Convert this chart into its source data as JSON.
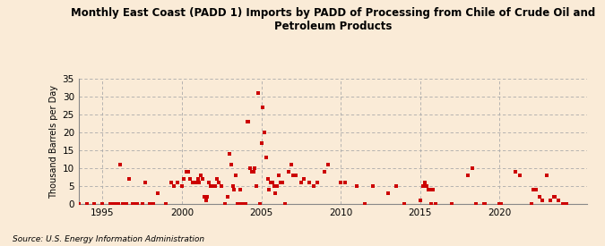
{
  "title": "Monthly East Coast (PADD 1) Imports by PADD of Processing from Chile of Crude Oil and\nPetroleum Products",
  "ylabel": "Thousand Barrels per Day",
  "source": "Source: U.S. Energy Information Administration",
  "background_color": "#faebd7",
  "marker_color": "#cc0000",
  "xlim": [
    1993.5,
    2025.5
  ],
  "ylim": [
    0,
    35
  ],
  "yticks": [
    0,
    5,
    10,
    15,
    20,
    25,
    30,
    35
  ],
  "xticks": [
    1995,
    2000,
    2005,
    2010,
    2015,
    2020
  ],
  "data_points": [
    [
      1993.5,
      0
    ],
    [
      1994.0,
      0
    ],
    [
      1994.5,
      0
    ],
    [
      1995.0,
      0
    ],
    [
      1995.5,
      0
    ],
    [
      1995.7,
      0
    ],
    [
      1995.9,
      0
    ],
    [
      1996.0,
      0
    ],
    [
      1996.1,
      11
    ],
    [
      1996.3,
      0
    ],
    [
      1996.5,
      0
    ],
    [
      1996.7,
      7
    ],
    [
      1996.9,
      0
    ],
    [
      1997.0,
      0
    ],
    [
      1997.2,
      0
    ],
    [
      1997.5,
      0
    ],
    [
      1997.7,
      6
    ],
    [
      1998.0,
      0
    ],
    [
      1998.2,
      0
    ],
    [
      1998.5,
      3
    ],
    [
      1999.0,
      0
    ],
    [
      1999.3,
      6
    ],
    [
      1999.5,
      5
    ],
    [
      1999.7,
      6
    ],
    [
      2000.0,
      5
    ],
    [
      2000.1,
      7
    ],
    [
      2000.3,
      9
    ],
    [
      2000.4,
      9
    ],
    [
      2000.5,
      7
    ],
    [
      2000.7,
      6
    ],
    [
      2000.9,
      6
    ],
    [
      2001.0,
      7
    ],
    [
      2001.1,
      6
    ],
    [
      2001.2,
      8
    ],
    [
      2001.3,
      7
    ],
    [
      2001.4,
      2
    ],
    [
      2001.5,
      1
    ],
    [
      2001.6,
      2
    ],
    [
      2001.7,
      6
    ],
    [
      2001.8,
      5
    ],
    [
      2002.0,
      5
    ],
    [
      2002.1,
      5
    ],
    [
      2002.2,
      7
    ],
    [
      2002.3,
      6
    ],
    [
      2002.5,
      5
    ],
    [
      2002.7,
      0
    ],
    [
      2002.9,
      2
    ],
    [
      2003.0,
      14
    ],
    [
      2003.1,
      11
    ],
    [
      2003.2,
      5
    ],
    [
      2003.3,
      4
    ],
    [
      2003.4,
      8
    ],
    [
      2003.5,
      0
    ],
    [
      2003.6,
      0
    ],
    [
      2003.7,
      4
    ],
    [
      2003.8,
      0
    ],
    [
      2003.9,
      0
    ],
    [
      2004.0,
      0
    ],
    [
      2004.1,
      23
    ],
    [
      2004.2,
      23
    ],
    [
      2004.3,
      10
    ],
    [
      2004.4,
      9
    ],
    [
      2004.5,
      9
    ],
    [
      2004.6,
      10
    ],
    [
      2004.7,
      5
    ],
    [
      2004.8,
      31
    ],
    [
      2004.9,
      0
    ],
    [
      2005.0,
      17
    ],
    [
      2005.1,
      27
    ],
    [
      2005.2,
      20
    ],
    [
      2005.3,
      13
    ],
    [
      2005.4,
      7
    ],
    [
      2005.5,
      4
    ],
    [
      2005.6,
      6
    ],
    [
      2005.7,
      6
    ],
    [
      2005.8,
      5
    ],
    [
      2005.9,
      3
    ],
    [
      2006.0,
      5
    ],
    [
      2006.1,
      8
    ],
    [
      2006.2,
      6
    ],
    [
      2006.3,
      6
    ],
    [
      2006.5,
      0
    ],
    [
      2006.7,
      9
    ],
    [
      2006.9,
      11
    ],
    [
      2007.0,
      8
    ],
    [
      2007.2,
      8
    ],
    [
      2007.5,
      6
    ],
    [
      2007.7,
      7
    ],
    [
      2008.0,
      6
    ],
    [
      2008.3,
      5
    ],
    [
      2008.5,
      6
    ],
    [
      2009.0,
      9
    ],
    [
      2009.2,
      11
    ],
    [
      2010.0,
      6
    ],
    [
      2010.3,
      6
    ],
    [
      2011.0,
      5
    ],
    [
      2011.5,
      0
    ],
    [
      2012.0,
      5
    ],
    [
      2013.0,
      3
    ],
    [
      2013.5,
      5
    ],
    [
      2014.0,
      0
    ],
    [
      2015.0,
      1
    ],
    [
      2015.2,
      5
    ],
    [
      2015.3,
      6
    ],
    [
      2015.4,
      5
    ],
    [
      2015.5,
      4
    ],
    [
      2015.6,
      4
    ],
    [
      2015.7,
      0
    ],
    [
      2015.8,
      4
    ],
    [
      2016.0,
      0
    ],
    [
      2017.0,
      0
    ],
    [
      2018.0,
      8
    ],
    [
      2018.3,
      10
    ],
    [
      2018.5,
      0
    ],
    [
      2019.0,
      0
    ],
    [
      2019.1,
      0
    ],
    [
      2020.0,
      0
    ],
    [
      2020.1,
      0
    ],
    [
      2021.0,
      9
    ],
    [
      2021.3,
      8
    ],
    [
      2022.0,
      0
    ],
    [
      2022.1,
      4
    ],
    [
      2022.3,
      4
    ],
    [
      2022.5,
      2
    ],
    [
      2022.7,
      1
    ],
    [
      2023.0,
      8
    ],
    [
      2023.2,
      1
    ],
    [
      2023.4,
      2
    ],
    [
      2023.5,
      2
    ],
    [
      2023.7,
      1
    ],
    [
      2024.0,
      0
    ],
    [
      2024.2,
      0
    ]
  ]
}
